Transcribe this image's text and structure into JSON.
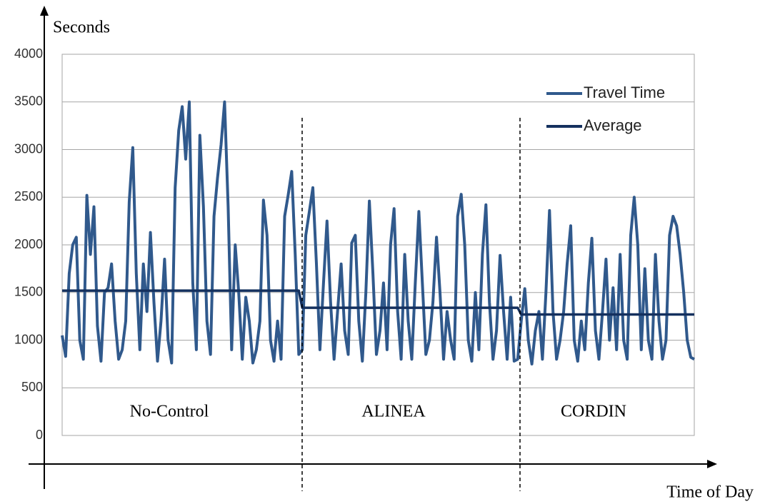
{
  "chart_data": {
    "type": "line",
    "y_label": "Seconds",
    "x_label": "Time of Day",
    "annotations": [
      "No-Control",
      "ALINEA",
      "CORDIN"
    ],
    "ylim": [
      0,
      4000
    ],
    "yticks": [
      0,
      500,
      1000,
      1500,
      2000,
      2500,
      3000,
      3500,
      4000
    ],
    "grid": true,
    "categories": [
      null,
      null,
      null,
      null,
      null,
      null,
      null,
      null,
      null,
      null,
      null,
      null,
      null,
      null,
      null,
      null,
      null,
      null,
      null,
      null,
      null,
      null,
      null,
      null,
      null,
      null,
      null,
      null,
      null,
      null,
      null,
      null,
      null,
      null,
      null,
      null,
      null,
      null,
      null,
      null,
      null,
      null,
      null,
      null,
      null,
      null,
      null,
      null,
      null,
      null,
      null,
      null,
      null,
      null,
      null,
      null,
      null,
      null,
      null,
      null,
      null,
      null,
      null,
      null,
      null,
      null,
      null,
      null,
      null,
      null,
      null,
      null,
      null,
      null,
      null,
      null,
      null,
      null,
      null,
      null,
      null,
      null,
      null,
      null,
      null,
      null,
      null,
      null,
      null,
      null,
      null,
      null,
      null,
      null,
      null,
      null,
      null,
      null,
      null,
      null,
      null,
      null,
      null,
      null,
      null,
      null,
      null,
      null,
      null,
      null,
      null,
      null,
      null,
      null,
      null,
      null,
      null,
      null,
      null,
      null,
      null,
      null,
      null,
      null,
      null,
      null,
      null,
      null,
      null,
      null,
      null,
      null,
      null,
      null,
      null,
      null,
      null,
      null,
      null,
      null,
      null,
      null,
      null,
      null,
      null,
      null,
      null,
      null,
      null,
      null,
      null,
      null,
      null,
      null,
      null,
      null,
      null,
      null,
      null,
      null,
      null,
      null,
      null,
      null,
      null,
      null,
      null,
      null,
      null,
      null,
      null,
      null,
      null,
      null,
      null,
      null,
      null,
      null,
      null,
      null
    ],
    "series": [
      {
        "name": "Travel Time",
        "color": "#30598c",
        "values": [
          1050,
          830,
          1700,
          2000,
          2080,
          1000,
          800,
          2520,
          1900,
          2400,
          1150,
          780,
          1500,
          1550,
          1800,
          1200,
          800,
          900,
          1200,
          2450,
          3020,
          1700,
          900,
          1800,
          1300,
          2130,
          1400,
          780,
          1200,
          1850,
          1000,
          760,
          2600,
          3200,
          3450,
          2900,
          3500,
          1600,
          900,
          3150,
          2400,
          1200,
          850,
          2300,
          2700,
          3050,
          3500,
          2400,
          900,
          2000,
          1500,
          800,
          1450,
          1200,
          760,
          900,
          1200,
          2470,
          2100,
          1000,
          780,
          1200,
          800,
          2300,
          2520,
          2770,
          1900,
          850,
          900,
          2100,
          2350,
          2600,
          1800,
          900,
          1600,
          2250,
          1400,
          800,
          1300,
          1800,
          1100,
          850,
          2020,
          2100,
          1200,
          780,
          1500,
          2460,
          1700,
          850,
          1100,
          1600,
          900,
          2000,
          2380,
          1300,
          800,
          1900,
          1200,
          800,
          1600,
          2350,
          1600,
          850,
          1000,
          1400,
          2080,
          1500,
          800,
          1300,
          1000,
          800,
          2300,
          2530,
          2000,
          1000,
          780,
          1500,
          900,
          1900,
          2420,
          1400,
          800,
          1100,
          1890,
          1300,
          800,
          1450,
          780,
          800,
          1200,
          1540,
          1000,
          750,
          1100,
          1300,
          800,
          1500,
          2360,
          1300,
          800,
          1000,
          1300,
          1800,
          2200,
          1000,
          780,
          1200,
          900,
          1600,
          2070,
          1100,
          800,
          1300,
          1850,
          1000,
          1550,
          900,
          1900,
          1000,
          800,
          2100,
          2500,
          2000,
          900,
          1750,
          1000,
          800,
          1900,
          1200,
          800,
          1000,
          2100,
          2300,
          2200,
          1900,
          1500,
          1000,
          820,
          800
        ]
      },
      {
        "name": "Average",
        "color": "#14305e",
        "values": [
          1520,
          1520,
          1520,
          1520,
          1520,
          1520,
          1520,
          1520,
          1520,
          1520,
          1520,
          1520,
          1520,
          1520,
          1520,
          1520,
          1520,
          1520,
          1520,
          1520,
          1520,
          1520,
          1520,
          1520,
          1520,
          1520,
          1520,
          1520,
          1520,
          1520,
          1520,
          1520,
          1520,
          1520,
          1520,
          1520,
          1520,
          1520,
          1520,
          1520,
          1520,
          1520,
          1520,
          1520,
          1520,
          1520,
          1520,
          1520,
          1520,
          1520,
          1520,
          1520,
          1520,
          1520,
          1520,
          1520,
          1520,
          1520,
          1520,
          1520,
          1520,
          1520,
          1520,
          1520,
          1520,
          1520,
          1520,
          1520,
          1340,
          1340,
          1340,
          1340,
          1340,
          1340,
          1340,
          1340,
          1340,
          1340,
          1340,
          1340,
          1340,
          1340,
          1340,
          1340,
          1340,
          1340,
          1340,
          1340,
          1340,
          1340,
          1340,
          1340,
          1340,
          1340,
          1340,
          1340,
          1340,
          1340,
          1340,
          1340,
          1340,
          1340,
          1340,
          1340,
          1340,
          1340,
          1340,
          1340,
          1340,
          1340,
          1340,
          1340,
          1340,
          1340,
          1340,
          1340,
          1340,
          1340,
          1340,
          1340,
          1340,
          1340,
          1340,
          1340,
          1340,
          1340,
          1340,
          1340,
          1340,
          1340,
          1270,
          1270,
          1270,
          1270,
          1270,
          1270,
          1270,
          1270,
          1270,
          1270,
          1270,
          1270,
          1270,
          1270,
          1270,
          1270,
          1270,
          1270,
          1270,
          1270,
          1270,
          1270,
          1270,
          1270,
          1270,
          1270,
          1270,
          1270,
          1270,
          1270,
          1270,
          1270,
          1270,
          1270,
          1270,
          1270,
          1270,
          1270,
          1270,
          1270,
          1270,
          1270,
          1270,
          1270,
          1270,
          1270,
          1270,
          1270,
          1270,
          1270
        ]
      }
    ]
  }
}
